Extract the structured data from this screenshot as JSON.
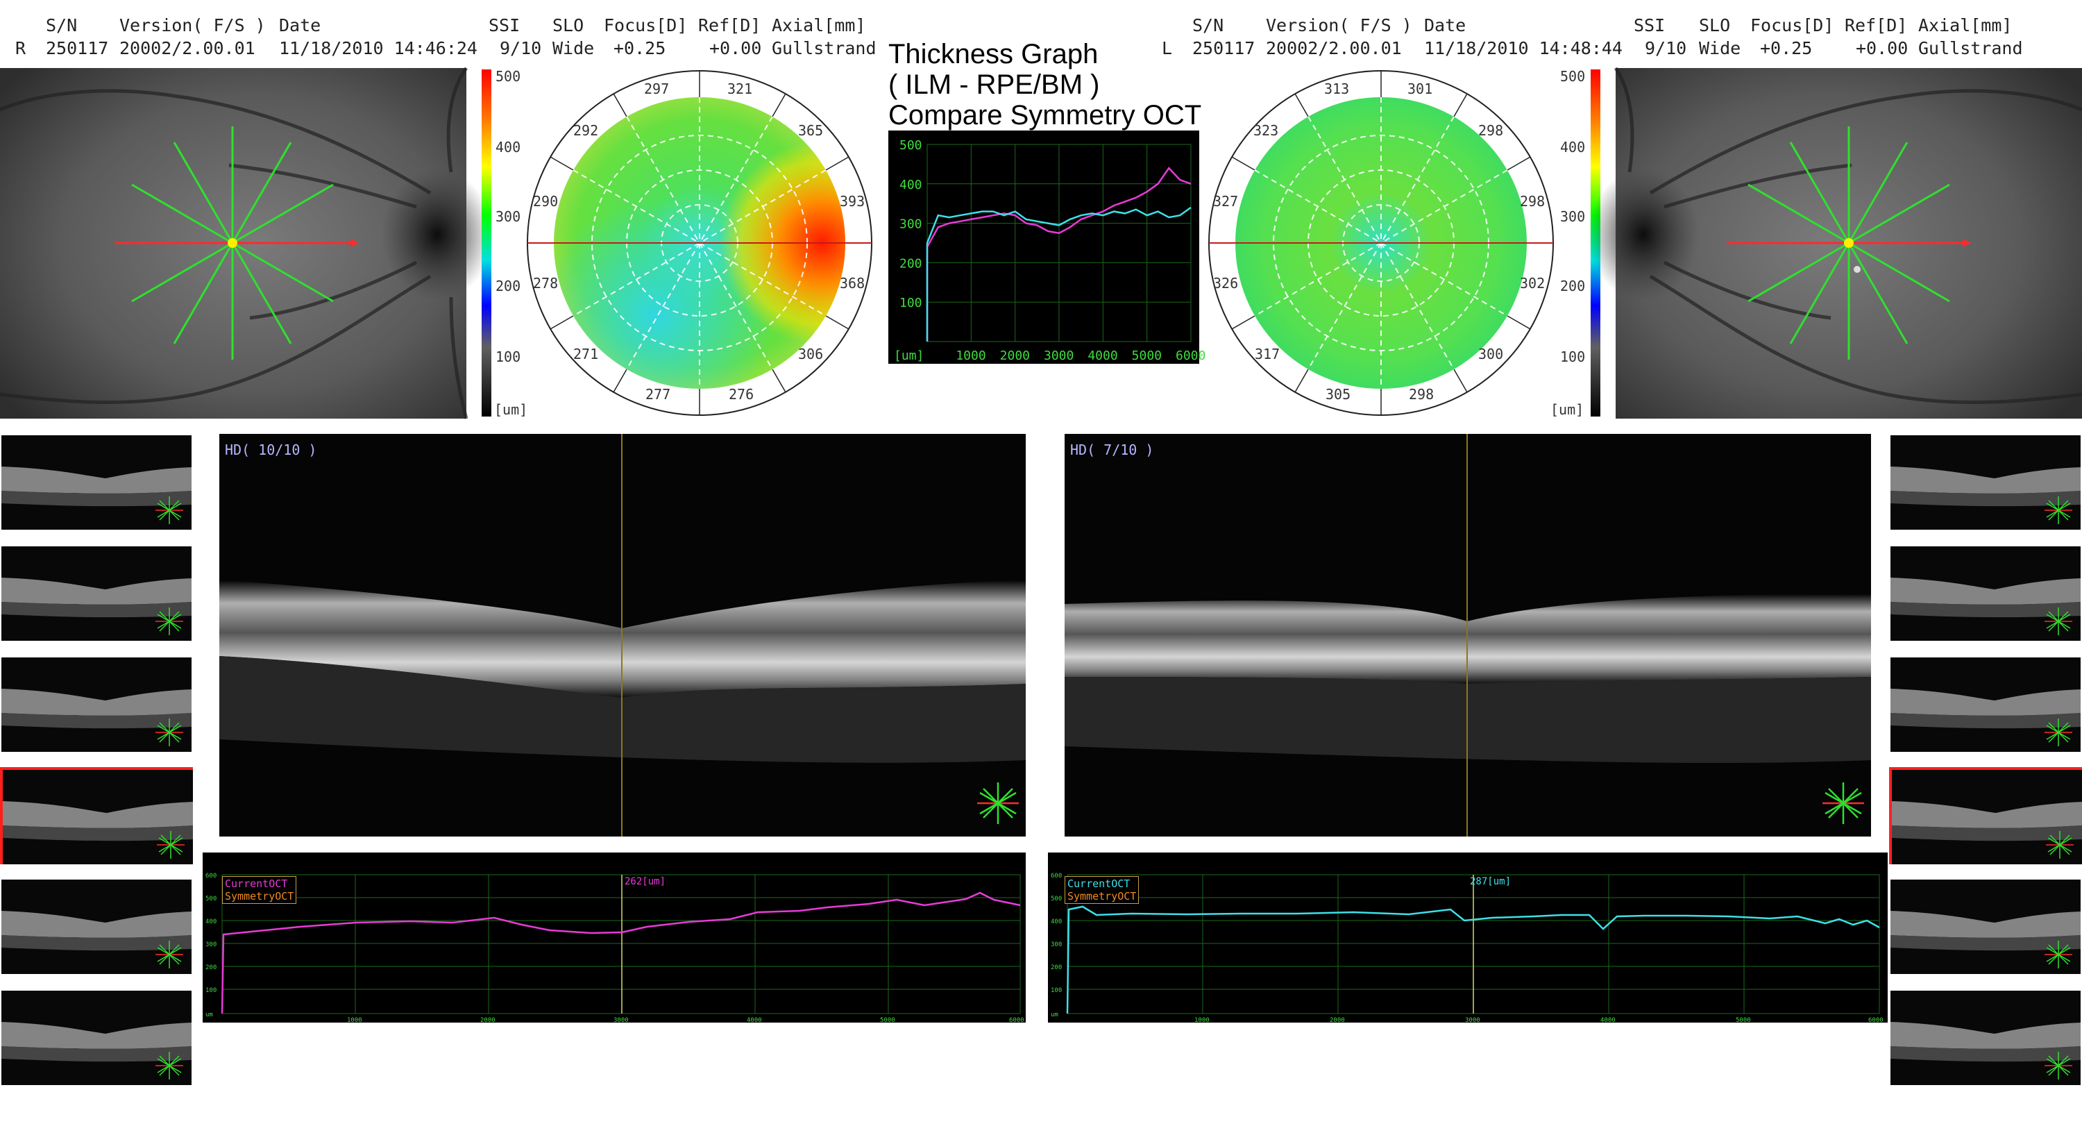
{
  "right_eye": {
    "eye": "R",
    "sn_label": "S/N",
    "sn": "250117",
    "version_label": "Version( F/S )",
    "version": "20002/2.00.01",
    "date_label": "Date",
    "date": "11/18/2010 14:46:24",
    "ssi_label": "SSI",
    "ssi": "9/10",
    "slo_label": "SLO",
    "slo": "Wide",
    "focus_label": "Focus[D]",
    "focus": "+0.25",
    "ref_label": "Ref[D]",
    "ref": "+0.00",
    "axial_label": "Axial[mm]",
    "axial": "Gullstrand",
    "polar_values": [
      "297",
      "321",
      "365",
      "393",
      "368",
      "306",
      "276",
      "277",
      "271",
      "278",
      "290",
      "292"
    ],
    "scan_label": "HD( 10/10 )",
    "graph_current_label": "CurrentOCT",
    "graph_symmetry_label": "SymmetryOCT",
    "graph_cursor_value": "262[um]",
    "graph_line_color": "#e83ad8"
  },
  "left_eye": {
    "eye": "L",
    "sn_label": "S/N",
    "sn": "250117",
    "version_label": "Version( F/S )",
    "version": "20002/2.00.01",
    "date_label": "Date",
    "date": "11/18/2010 14:48:44",
    "ssi_label": "SSI",
    "ssi": "9/10",
    "slo_label": "SLO",
    "slo": "Wide",
    "focus_label": "Focus[D]",
    "focus": "+0.25",
    "ref_label": "Ref[D]",
    "ref": "+0.00",
    "axial_label": "Axial[mm]",
    "axial": "Gullstrand",
    "polar_values": [
      "313",
      "301",
      "298",
      "298",
      "302",
      "300",
      "298",
      "305",
      "317",
      "326",
      "327",
      "323"
    ],
    "scan_label": "HD( 7/10 )",
    "graph_current_label": "CurrentOCT",
    "graph_symmetry_label": "SymmetryOCT",
    "graph_cursor_value": "287[um]",
    "graph_line_color": "#3ee0e8"
  },
  "colorbar": {
    "ticks": [
      "500",
      "400",
      "300",
      "200",
      "100"
    ],
    "unit": "[um]"
  },
  "center": {
    "title_line1": "Thickness Graph",
    "title_line2": "( ILM - RPE/BM )",
    "title_line3": "Compare Symmetry OCT",
    "y_ticks": [
      "500",
      "400",
      "300",
      "200",
      "100"
    ],
    "x_ticks": [
      "1000",
      "2000",
      "3000",
      "4000",
      "5000",
      "6000"
    ],
    "x_unit": "[um]"
  },
  "mini_graph_ticks": {
    "y": [
      "600",
      "500",
      "400",
      "300",
      "200",
      "100"
    ],
    "x": [
      "1000",
      "2000",
      "3000",
      "4000",
      "5000",
      "6000"
    ],
    "unit": "um"
  },
  "chart_data": {
    "type": "line",
    "title": "Thickness Graph ( ILM - RPE/BM ) Compare Symmetry OCT",
    "xlabel": "[um]",
    "ylabel": "",
    "xlim": [
      0,
      6000
    ],
    "ylim": [
      0,
      500
    ],
    "x": [
      0,
      250,
      500,
      750,
      1000,
      1250,
      1500,
      1750,
      2000,
      2250,
      2500,
      2750,
      3000,
      3250,
      3500,
      3750,
      4000,
      4250,
      4500,
      4750,
      5000,
      5250,
      5500,
      5750,
      6000
    ],
    "series": [
      {
        "name": "",
        "color": "#e83ad8",
        "values": [
          240,
          290,
          300,
          305,
          310,
          315,
          320,
          325,
          320,
          300,
          295,
          280,
          275,
          290,
          310,
          320,
          330,
          345,
          355,
          365,
          380,
          400,
          440,
          410,
          400
        ]
      },
      {
        "name": "",
        "color": "#3ee0e8",
        "values": [
          250,
          320,
          315,
          320,
          325,
          330,
          330,
          320,
          330,
          310,
          305,
          300,
          295,
          310,
          320,
          325,
          320,
          330,
          325,
          335,
          320,
          330,
          315,
          320,
          340
        ]
      }
    ]
  }
}
